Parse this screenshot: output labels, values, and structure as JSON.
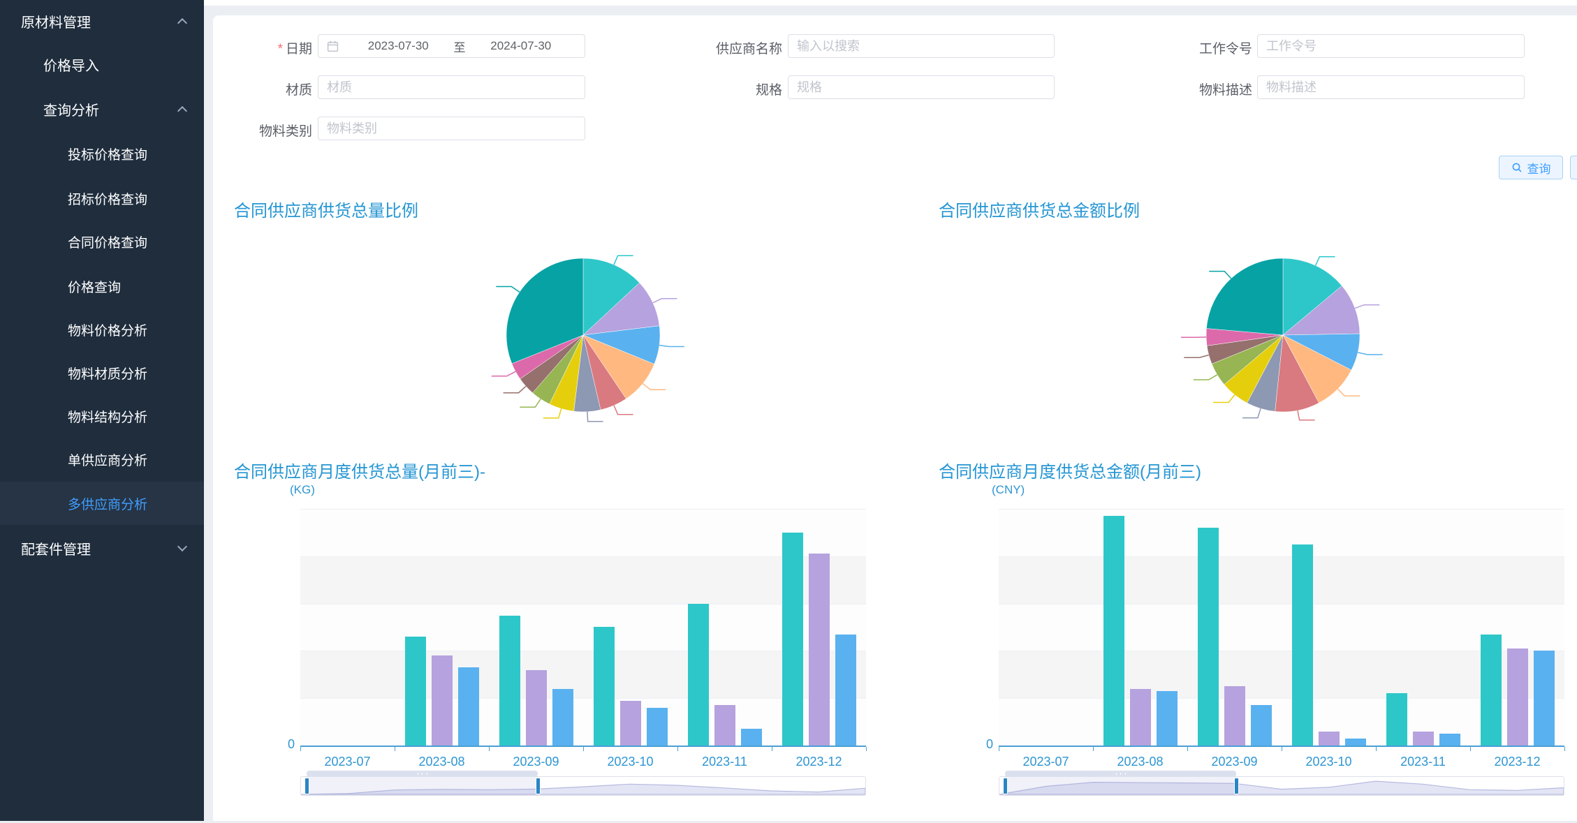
{
  "sidebar": {
    "colors": {
      "bg": "#1f2d3d",
      "active_bg": "#263445",
      "active_text": "#409eff",
      "text": "#ffffff"
    },
    "items": [
      {
        "label": "原材料管理",
        "level": 1,
        "chevron": "up"
      },
      {
        "label": "价格导入",
        "level": 2
      },
      {
        "label": "查询分析",
        "level": 2,
        "chevron": "up"
      },
      {
        "label": "投标价格查询",
        "level": 3
      },
      {
        "label": "招标价格查询",
        "level": 3
      },
      {
        "label": "合同价格查询",
        "level": 3
      },
      {
        "label": "价格查询",
        "level": 3
      },
      {
        "label": "物料价格分析",
        "level": 3
      },
      {
        "label": "物料材质分析",
        "level": 3
      },
      {
        "label": "物料结构分析",
        "level": 3
      },
      {
        "label": "单供应商分析",
        "level": 3
      },
      {
        "label": "多供应商分析",
        "level": 3,
        "active": true
      },
      {
        "label": "配套件管理",
        "level": 1,
        "chevron": "down"
      }
    ]
  },
  "filters": {
    "date": {
      "label": "日期",
      "required": true,
      "start": "2023-07-30",
      "separator": "至",
      "end": "2024-07-30"
    },
    "supplier": {
      "label": "供应商名称",
      "placeholder": "输入以搜索"
    },
    "work_order": {
      "label": "工作令号",
      "placeholder": "工作令号"
    },
    "material": {
      "label": "材质",
      "placeholder": "材质"
    },
    "spec": {
      "label": "规格",
      "placeholder": "规格"
    },
    "material_desc": {
      "label": "物料描述",
      "placeholder": "物料描述"
    },
    "material_category": {
      "label": "物料类别",
      "placeholder": "物料类别"
    }
  },
  "actions": {
    "query_label": "查询"
  },
  "palette": [
    "#2ec7c9",
    "#b6a2de",
    "#5ab1ef",
    "#ffb980",
    "#d87a80",
    "#8d98b3",
    "#e5cf0d",
    "#97b552",
    "#95706d",
    "#dc69aa",
    "#07a2a4"
  ],
  "chart_data": [
    {
      "type": "pie",
      "title": "合同供应商供货总量比例",
      "values": [
        13.1,
        10.0,
        8.1,
        9.4,
        5.8,
        5.6,
        5.3,
        4.2,
        3.9,
        3.6,
        31.1
      ],
      "colors": [
        "#2ec7c9",
        "#b6a2de",
        "#5ab1ef",
        "#ffb980",
        "#d87a80",
        "#8d98b3",
        "#e5cf0d",
        "#97b552",
        "#95706d",
        "#dc69aa",
        "#07a2a4"
      ],
      "legend": "none",
      "labels_illegible": true
    },
    {
      "type": "pie",
      "title": "合同供应商供货总金额比例",
      "values": [
        13.9,
        10.8,
        7.8,
        9.7,
        9.4,
        6.1,
        6.1,
        5.0,
        3.9,
        3.6,
        23.6
      ],
      "colors": [
        "#2ec7c9",
        "#b6a2de",
        "#5ab1ef",
        "#ffb980",
        "#d87a80",
        "#8d98b3",
        "#e5cf0d",
        "#97b552",
        "#95706d",
        "#dc69aa",
        "#07a2a4"
      ],
      "legend": "none",
      "labels_illegible": true
    },
    {
      "type": "bar",
      "title": "合同供应商月度供货总量(月前三)-",
      "y_unit": "(KG)",
      "y_axis": {
        "min_label": "0",
        "scale": "relative_percent_of_max",
        "ylim": [
          0,
          100
        ]
      },
      "grid": "horizontal-split-bands",
      "categories": [
        "2023-07",
        "2023-08",
        "2023-09",
        "2023-10",
        "2023-11",
        "2023-12"
      ],
      "series": [
        {
          "color": "#2ec7c9",
          "values": [
            0,
            46,
            55,
            50,
            60,
            90
          ]
        },
        {
          "color": "#b6a2de",
          "values": [
            0,
            38,
            32,
            19,
            17,
            81
          ]
        },
        {
          "color": "#5ab1ef",
          "values": [
            0,
            33,
            24,
            16,
            7,
            47
          ]
        }
      ],
      "datazoom": {
        "start_pct": 1,
        "end_pct": 42,
        "full_range_profile": [
          0,
          5,
          30,
          34,
          32,
          36,
          52,
          70,
          62,
          44,
          24,
          16,
          42
        ]
      }
    },
    {
      "type": "bar",
      "title": "合同供应商月度供货总金额(月前三)",
      "y_unit": "(CNY)",
      "y_axis": {
        "min_label": "0",
        "scale": "relative_percent_of_max",
        "ylim": [
          0,
          100
        ]
      },
      "grid": "horizontal-split-bands",
      "categories": [
        "2023-07",
        "2023-08",
        "2023-09",
        "2023-10",
        "2023-11",
        "2023-12"
      ],
      "series": [
        {
          "color": "#2ec7c9",
          "values": [
            0,
            97,
            92,
            85,
            22,
            47
          ]
        },
        {
          "color": "#b6a2de",
          "values": [
            0,
            24,
            25,
            6,
            6,
            41
          ]
        },
        {
          "color": "#5ab1ef",
          "values": [
            0,
            23,
            17,
            3,
            5,
            40
          ]
        }
      ],
      "datazoom": {
        "start_pct": 1,
        "end_pct": 42,
        "full_range_profile": [
          0,
          55,
          83,
          80,
          78,
          75,
          35,
          48,
          90,
          70,
          32,
          27,
          45
        ]
      }
    }
  ]
}
